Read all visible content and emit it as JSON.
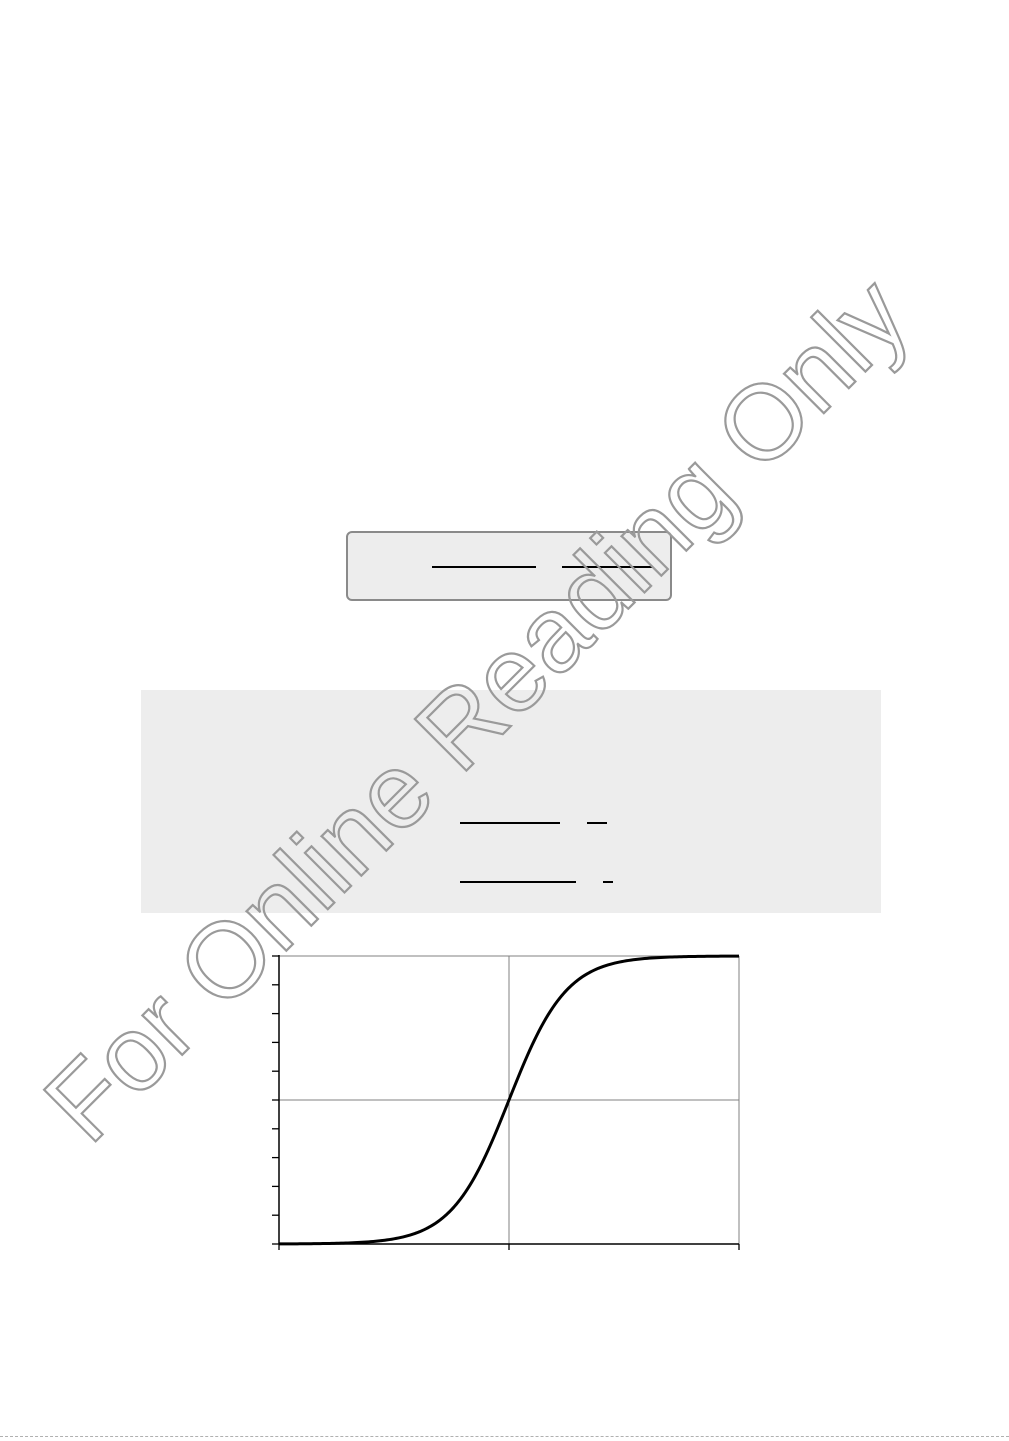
{
  "watermark": {
    "text": "For Online Reading Only",
    "color": "#9a9a9a"
  },
  "colors": {
    "panel_background": "#ededed",
    "curve": "#000000",
    "gridline": "#808080"
  },
  "chart_data": {
    "type": "line",
    "title": "",
    "xlabel": "",
    "ylabel": "",
    "grid": true,
    "function": "logistic (sigmoid) S-curve",
    "x": [
      -8,
      -7,
      -6,
      -5,
      -4,
      -3,
      -2,
      -1,
      0,
      1,
      2,
      3,
      4,
      5,
      6,
      7,
      8
    ],
    "series": [
      {
        "values": [
          0.0003,
          0.0009,
          0.0025,
          0.0067,
          0.018,
          0.047,
          0.119,
          0.269,
          0.5,
          0.731,
          0.881,
          0.953,
          0.982,
          0.9933,
          0.9975,
          0.9991,
          0.9997
        ]
      }
    ],
    "xlim": [
      -8,
      8
    ],
    "ylim": [
      0,
      1
    ],
    "x_major_ticks": [
      -8,
      0,
      8
    ],
    "y_ticks": [
      0,
      0.1,
      0.2,
      0.3,
      0.4,
      0.5,
      0.6,
      0.7,
      0.8,
      0.9,
      1.0
    ]
  }
}
